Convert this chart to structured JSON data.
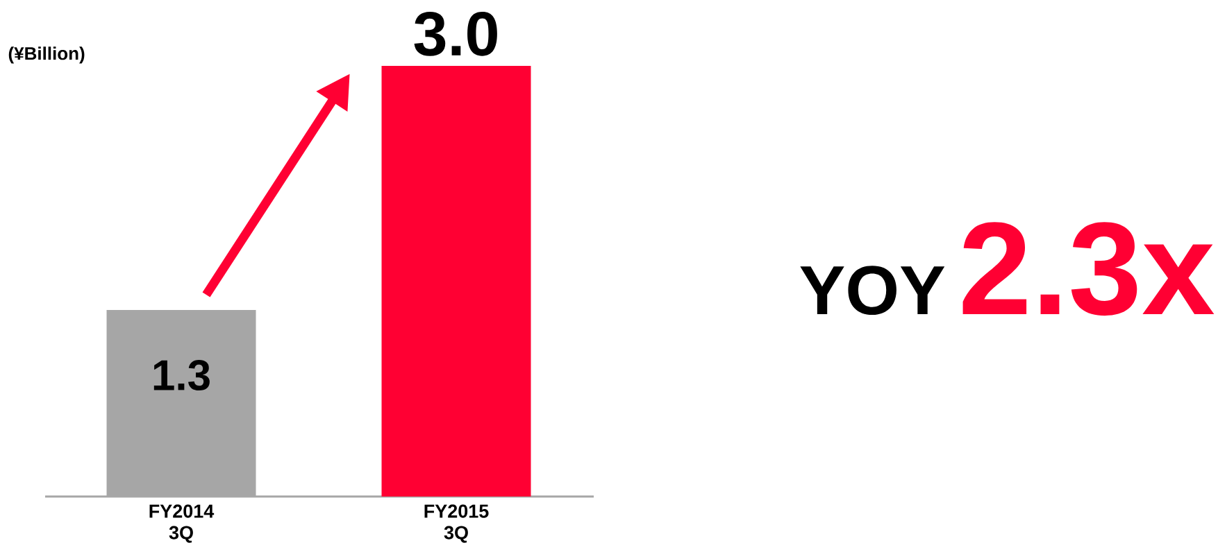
{
  "chart_data": {
    "type": "bar",
    "ylabel": "(¥Billion)",
    "categories": [
      "FY2014 3Q",
      "FY2015 3Q"
    ],
    "values": [
      1.3,
      3.0
    ],
    "colors": [
      "#a6a6a6",
      "#ff0033"
    ],
    "ylim": [
      0,
      3.0
    ],
    "value_labels": [
      "1.3",
      "3.0"
    ],
    "annotations": [
      "YOY",
      "2.3x"
    ]
  }
}
